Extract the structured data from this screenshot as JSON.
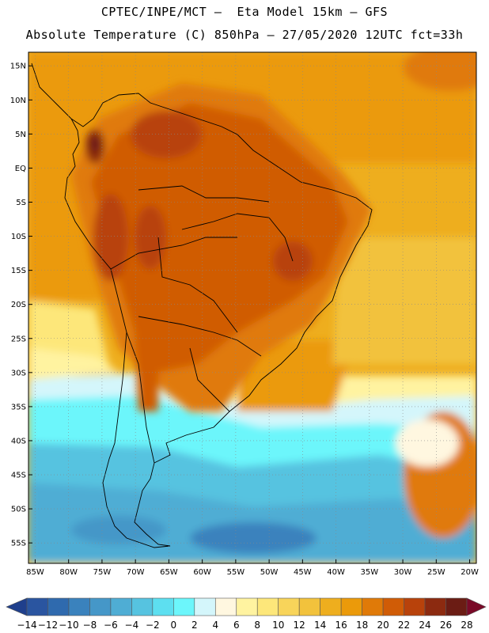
{
  "header": {
    "line1": "CPTEC/INPE/MCT –  Eta Model 15km – GFS",
    "line2": "Absolute Temperature (C) 850hPa – 27/05/2020 12UTC fct=33h"
  },
  "map": {
    "lon_range": [
      -86,
      -19
    ],
    "lat_range": [
      -58,
      17
    ],
    "lat_ticks": [
      "15N",
      "10N",
      "5N",
      "EQ",
      "5S",
      "10S",
      "15S",
      "20S",
      "25S",
      "30S",
      "35S",
      "40S",
      "45S",
      "50S",
      "55S"
    ],
    "lon_ticks": [
      "85W",
      "80W",
      "75W",
      "70W",
      "65W",
      "60W",
      "55W",
      "50W",
      "45W",
      "40W",
      "35W",
      "30W",
      "25W",
      "20W"
    ],
    "grid": "dotted"
  },
  "colorbar": {
    "labels": [
      "-14",
      "-12",
      "-10",
      "-8",
      "-6",
      "-4",
      "-2",
      "0",
      "2",
      "4",
      "6",
      "8",
      "10",
      "12",
      "14",
      "16",
      "18",
      "20",
      "22",
      "24",
      "26",
      "28"
    ],
    "colors": [
      "#1f3f8c",
      "#2a55a0",
      "#2f6aae",
      "#3a82bd",
      "#4597c8",
      "#4fadd4",
      "#56c3e0",
      "#5ddff0",
      "#6cf6fb",
      "#d4f6fb",
      "#fff7e0",
      "#fff3a0",
      "#fde77a",
      "#f8d45a",
      "#f2c23c",
      "#eeae1e",
      "#eb9a0a",
      "#e07a08",
      "#d05c06",
      "#b8420b",
      "#8c2a10",
      "#6b1c14",
      "#7a0a28"
    ]
  }
}
